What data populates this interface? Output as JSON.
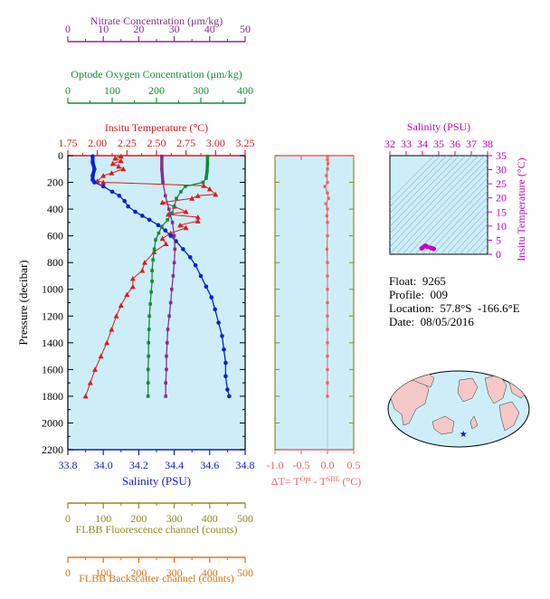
{
  "colors": {
    "plot_bg": "#cdeef8",
    "nitrate": "#8b2e8b",
    "oxygen": "#168a3a",
    "temperature": "#e11a1a",
    "salinity": "#0b1fd6",
    "fluorescence": "#8d8d1a",
    "backscatter": "#e0731a",
    "delta_t": "#f06060",
    "ts_axis": "#c400c4",
    "land": "#f5c8c8"
  },
  "float_info": {
    "float": "Float:  9265",
    "profile": "Profile:  009",
    "location": "Location:  57.8°S  -166.6°E",
    "date": "Date:  08/05/2016"
  },
  "chart_data": [
    {
      "type": "line",
      "panel": "main-profile",
      "y_axis": {
        "label": "Pressure (decibar)",
        "lim": [
          2200,
          0
        ],
        "ticks": [
          "0",
          "200",
          "400",
          "600",
          "800",
          "1000",
          "1200",
          "1400",
          "1600",
          "1800",
          "2000",
          "2200"
        ]
      },
      "axes": {
        "nitrate": {
          "label": "Nitrate Concentration (μm/kg)",
          "lim": [
            0,
            50
          ],
          "ticks": [
            "0",
            "10",
            "20",
            "30",
            "40",
            "50"
          ]
        },
        "oxygen": {
          "label": "Optode Oxygen Concentration (μm/kg)",
          "lim": [
            0,
            400
          ],
          "ticks": [
            "0",
            "100",
            "200",
            "300",
            "400"
          ]
        },
        "temperature": {
          "label": "Insitu Temperature (°C)",
          "lim": [
            1.75,
            3.25
          ],
          "ticks": [
            "1.75",
            "2.00",
            "2.25",
            "2.50",
            "2.75",
            "3.00",
            "3.25"
          ]
        },
        "salinity": {
          "label": "Salinity (PSU)",
          "lim": [
            33.8,
            34.8
          ],
          "ticks": [
            "33.8",
            "34.0",
            "34.2",
            "34.4",
            "34.6",
            "34.8"
          ]
        },
        "fluorescence": {
          "label": "FLBB Fluorescence channel (counts)",
          "lim": [
            0,
            500
          ],
          "ticks": [
            "0",
            "100",
            "200",
            "300",
            "400",
            "500"
          ]
        },
        "backscatter": {
          "label": "FLBB Backscatter channel (counts)",
          "lim": [
            0,
            500
          ],
          "ticks": [
            "0",
            "100",
            "200",
            "300",
            "400",
            "500"
          ]
        }
      },
      "series": [
        {
          "name": "Insitu Temperature (°C)",
          "axis": "temperature",
          "marker": "triangle",
          "points": [
            [
              2.2,
              5
            ],
            [
              2.15,
              20
            ],
            [
              2.2,
              40
            ],
            [
              2.13,
              60
            ],
            [
              2.18,
              80
            ],
            [
              2.22,
              100
            ],
            [
              2.12,
              130
            ],
            [
              2.05,
              150
            ],
            [
              2.0,
              190
            ],
            [
              2.05,
              200
            ],
            [
              2.9,
              225
            ],
            [
              2.95,
              250
            ],
            [
              3.0,
              290
            ],
            [
              2.85,
              300
            ],
            [
              2.8,
              320
            ],
            [
              2.55,
              350
            ],
            [
              2.65,
              380
            ],
            [
              2.75,
              420
            ],
            [
              2.6,
              440
            ],
            [
              2.85,
              460
            ],
            [
              2.85,
              490
            ],
            [
              2.7,
              520
            ],
            [
              2.75,
              540
            ],
            [
              2.62,
              580
            ],
            [
              2.55,
              620
            ],
            [
              2.58,
              660
            ],
            [
              2.48,
              720
            ],
            [
              2.4,
              800
            ],
            [
              2.38,
              860
            ],
            [
              2.3,
              920
            ],
            [
              2.3,
              980
            ],
            [
              2.25,
              1040
            ],
            [
              2.2,
              1120
            ],
            [
              2.16,
              1200
            ],
            [
              2.12,
              1300
            ],
            [
              2.08,
              1400
            ],
            [
              2.03,
              1500
            ],
            [
              1.98,
              1600
            ],
            [
              1.94,
              1700
            ],
            [
              1.9,
              1800
            ]
          ]
        },
        {
          "name": "Salinity (PSU)",
          "axis": "salinity",
          "marker": "circle",
          "points": [
            [
              33.94,
              5
            ],
            [
              33.94,
              50
            ],
            [
              33.95,
              100
            ],
            [
              33.94,
              150
            ],
            [
              33.94,
              180
            ],
            [
              33.95,
              200
            ],
            [
              34.0,
              230
            ],
            [
              34.05,
              270
            ],
            [
              34.09,
              300
            ],
            [
              34.12,
              340
            ],
            [
              34.14,
              380
            ],
            [
              34.18,
              420
            ],
            [
              34.22,
              450
            ],
            [
              34.26,
              480
            ],
            [
              34.31,
              520
            ],
            [
              34.35,
              560
            ],
            [
              34.38,
              600
            ],
            [
              34.41,
              640
            ],
            [
              34.45,
              700
            ],
            [
              34.49,
              760
            ],
            [
              34.52,
              820
            ],
            [
              34.55,
              900
            ],
            [
              34.58,
              980
            ],
            [
              34.61,
              1060
            ],
            [
              34.63,
              1150
            ],
            [
              34.65,
              1250
            ],
            [
              34.67,
              1350
            ],
            [
              34.68,
              1450
            ],
            [
              34.69,
              1550
            ],
            [
              34.69,
              1650
            ],
            [
              34.7,
              1750
            ],
            [
              34.71,
              1800
            ]
          ]
        },
        {
          "name": "Optode Oxygen Concentration (μm/kg)",
          "axis": "oxygen",
          "marker": "square",
          "points": [
            [
              315,
              5
            ],
            [
              315,
              60
            ],
            [
              314,
              120
            ],
            [
              312,
              170
            ],
            [
              305,
              200
            ],
            [
              265,
              230
            ],
            [
              255,
              270
            ],
            [
              245,
              320
            ],
            [
              240,
              380
            ],
            [
              235,
              430
            ],
            [
              225,
              480
            ],
            [
              212,
              530
            ],
            [
              205,
              580
            ],
            [
              198,
              630
            ],
            [
              195,
              700
            ],
            [
              192,
              780
            ],
            [
              190,
              860
            ],
            [
              190,
              940
            ],
            [
              188,
              1020
            ],
            [
              186,
              1110
            ],
            [
              184,
              1200
            ],
            [
              183,
              1300
            ],
            [
              182,
              1400
            ],
            [
              182,
              1500
            ],
            [
              181,
              1600
            ],
            [
              181,
              1700
            ],
            [
              181,
              1800
            ]
          ]
        },
        {
          "name": "Nitrate Concentration (μm/kg)",
          "axis": "nitrate",
          "marker": "square",
          "points": [
            [
              26.5,
              5
            ],
            [
              26.5,
              100
            ],
            [
              26.8,
              200
            ],
            [
              27.5,
              300
            ],
            [
              28.5,
              400
            ],
            [
              29.5,
              500
            ],
            [
              30.0,
              600
            ],
            [
              30.2,
              700
            ],
            [
              30.0,
              800
            ],
            [
              29.7,
              900
            ],
            [
              29.3,
              1000
            ],
            [
              29.0,
              1100
            ],
            [
              28.6,
              1200
            ],
            [
              28.2,
              1300
            ],
            [
              28.0,
              1400
            ],
            [
              27.8,
              1500
            ],
            [
              27.8,
              1600
            ],
            [
              27.6,
              1700
            ],
            [
              27.6,
              1800
            ]
          ]
        }
      ]
    },
    {
      "type": "scatter",
      "panel": "delta-t",
      "x_axis": {
        "label": "ΔT= T^Opt - T^SBE (°C)",
        "lim": [
          -1.0,
          0.5
        ],
        "ticks": [
          "-1.0",
          "-0.5",
          "0.0",
          "0.5"
        ]
      },
      "y_axis": {
        "lim": [
          2200,
          0
        ]
      },
      "series": [
        {
          "name": "ΔT",
          "points": [
            [
              0.0,
              5
            ],
            [
              0.0,
              30
            ],
            [
              0.01,
              60
            ],
            [
              0.0,
              100
            ],
            [
              -0.02,
              150
            ],
            [
              0.0,
              200
            ],
            [
              -0.05,
              230
            ],
            [
              0.0,
              280
            ],
            [
              0.02,
              320
            ],
            [
              -0.03,
              360
            ],
            [
              0.0,
              400
            ],
            [
              -0.01,
              450
            ],
            [
              0.0,
              500
            ],
            [
              0.0,
              600
            ],
            [
              -0.01,
              700
            ],
            [
              0.0,
              800
            ],
            [
              0.0,
              900
            ],
            [
              0.0,
              1000
            ],
            [
              0.0,
              1100
            ],
            [
              0.0,
              1200
            ],
            [
              0.0,
              1300
            ],
            [
              0.0,
              1400
            ],
            [
              0.0,
              1500
            ],
            [
              0.0,
              1600
            ],
            [
              0.0,
              1700
            ],
            [
              0.0,
              1800
            ]
          ]
        }
      ]
    },
    {
      "type": "scatter",
      "panel": "ts-diagram",
      "x_axis": {
        "label": "Salinity (PSU)",
        "lim": [
          32,
          38
        ],
        "ticks": [
          "32",
          "33",
          "34",
          "35",
          "36",
          "37",
          "38"
        ]
      },
      "y_axis": {
        "label": "Insitu Temperature (°C)",
        "lim": [
          0,
          35
        ],
        "ticks": [
          "0",
          "5",
          "10",
          "15",
          "20",
          "25",
          "30",
          "35"
        ]
      },
      "series": [
        {
          "name": "T-S",
          "points": [
            [
              34.0,
              2.2
            ],
            [
              34.1,
              2.8
            ],
            [
              34.3,
              2.6
            ],
            [
              34.5,
              2.3
            ],
            [
              34.6,
              2.1
            ],
            [
              34.7,
              1.9
            ],
            [
              33.95,
              2.1
            ],
            [
              34.2,
              3.0
            ]
          ]
        }
      ]
    },
    {
      "type": "map",
      "panel": "location-map",
      "marker": {
        "lat": -57.8,
        "lon": -166.6
      }
    }
  ]
}
